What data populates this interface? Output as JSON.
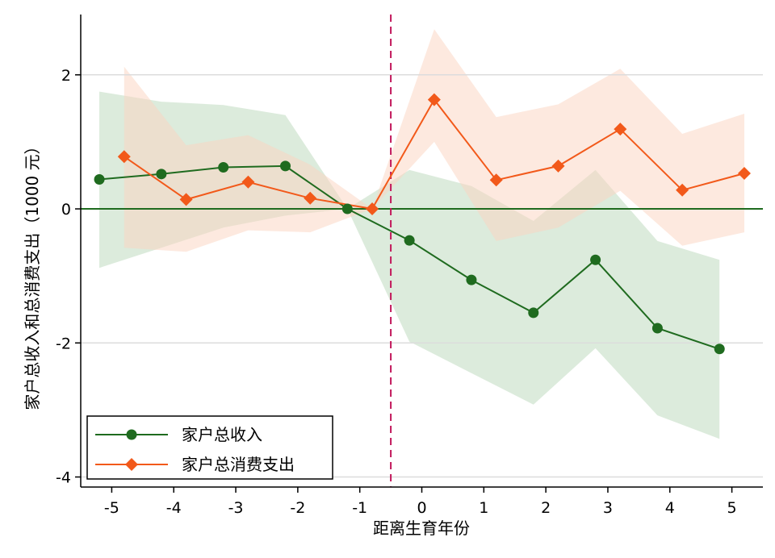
{
  "chart_data": {
    "type": "line",
    "xlabel": "距离生育年份",
    "ylabel": "家户总收入和总消费支出（1000 元）",
    "xlim": [
      -5.5,
      5.5
    ],
    "ylim": [
      -4.15,
      2.9
    ],
    "x_ticks": [
      -5,
      -4,
      -3,
      -2,
      -1,
      0,
      1,
      2,
      3,
      4,
      5
    ],
    "x_tick_labels": [
      "-5",
      "-4",
      "-3",
      "-2",
      "-1",
      "0",
      "1",
      "2",
      "3",
      "4",
      "5"
    ],
    "y_ticks": [
      -4,
      -2,
      0,
      2
    ],
    "y_tick_labels": [
      "-4",
      "-2",
      "0",
      "2"
    ],
    "grid": "horizontal",
    "reference_line_y": 0,
    "reference_line_x": -0.5,
    "legend_position": "bottom-left",
    "series": [
      {
        "name": "家户总收入",
        "color": "#1f6b1f",
        "band_color": "#b9d7b9",
        "marker": "circle",
        "x": [
          -5.2,
          -4.2,
          -3.2,
          -2.2,
          -1.2,
          -0.2,
          0.8,
          1.8,
          2.8,
          3.8,
          4.8
        ],
        "y": [
          0.44,
          0.52,
          0.62,
          0.64,
          0.0,
          -0.47,
          -1.06,
          -1.55,
          -0.76,
          -1.78,
          -2.09
        ],
        "lower": [
          -0.88,
          -0.58,
          -0.28,
          -0.1,
          0.0,
          -1.98,
          -2.45,
          -2.92,
          -2.08,
          -3.08,
          -3.43
        ],
        "upper": [
          1.75,
          1.6,
          1.55,
          1.4,
          0.0,
          0.58,
          0.34,
          -0.18,
          0.58,
          -0.48,
          -0.76
        ]
      },
      {
        "name": "家户总消费支出",
        "color": "#f2591a",
        "band_color": "#fbd4bf",
        "marker": "diamond",
        "x": [
          -4.8,
          -3.8,
          -2.8,
          -1.8,
          -0.8,
          0.2,
          1.2,
          2.2,
          3.2,
          4.2,
          5.2
        ],
        "y": [
          0.78,
          0.14,
          0.4,
          0.16,
          0.0,
          1.63,
          0.43,
          0.64,
          1.19,
          0.28,
          0.53
        ],
        "lower": [
          -0.58,
          -0.64,
          -0.32,
          -0.35,
          0.0,
          1.0,
          -0.48,
          -0.28,
          0.27,
          -0.55,
          -0.35
        ],
        "upper": [
          2.12,
          0.95,
          1.1,
          0.66,
          0.0,
          2.68,
          1.37,
          1.56,
          2.09,
          1.12,
          1.42
        ]
      }
    ]
  }
}
